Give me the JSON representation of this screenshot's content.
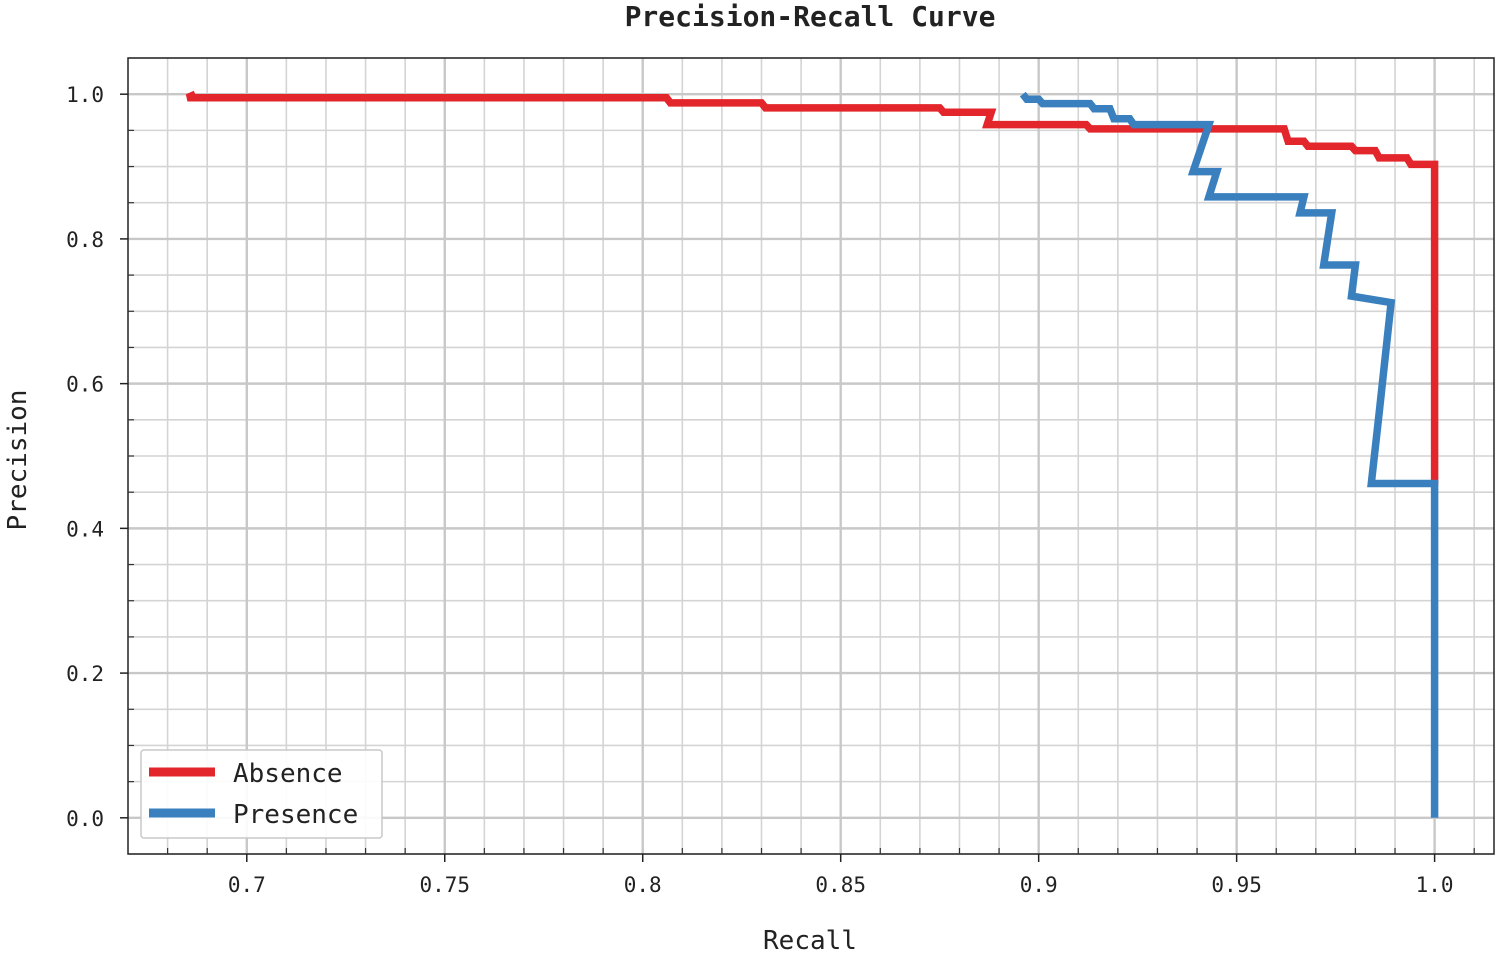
{
  "chart_data": {
    "type": "line",
    "title": "Precision-Recall Curve",
    "xlabel": "Recall",
    "ylabel": "Precision",
    "xlim": [
      0.67,
      1.015
    ],
    "ylim": [
      -0.05,
      1.05
    ],
    "grid": true,
    "legend_position": "bottom-left",
    "x_ticks": [
      {
        "value": 0.7,
        "label": "0.7"
      },
      {
        "value": 0.75,
        "label": "0.75"
      },
      {
        "value": 0.8,
        "label": "0.8"
      },
      {
        "value": 0.85,
        "label": "0.85"
      },
      {
        "value": 0.9,
        "label": "0.9"
      },
      {
        "value": 0.95,
        "label": "0.95"
      },
      {
        "value": 1.0,
        "label": "1.0"
      }
    ],
    "y_ticks": [
      {
        "value": 0.0,
        "label": "0.0"
      },
      {
        "value": 0.2,
        "label": "0.2"
      },
      {
        "value": 0.4,
        "label": "0.4"
      },
      {
        "value": 0.6,
        "label": "0.6"
      },
      {
        "value": 0.8,
        "label": "0.8"
      },
      {
        "value": 1.0,
        "label": "1.0"
      }
    ],
    "series": [
      {
        "name": "Absence",
        "color": "#e3262b",
        "points": [
          [
            0.687,
            1.0
          ],
          [
            0.685,
            0.995
          ],
          [
            0.806,
            0.995
          ],
          [
            0.807,
            0.988
          ],
          [
            0.83,
            0.988
          ],
          [
            0.831,
            0.981
          ],
          [
            0.875,
            0.981
          ],
          [
            0.876,
            0.975
          ],
          [
            0.888,
            0.975
          ],
          [
            0.887,
            0.958
          ],
          [
            0.912,
            0.958
          ],
          [
            0.913,
            0.952
          ],
          [
            0.962,
            0.952
          ],
          [
            0.963,
            0.935
          ],
          [
            0.967,
            0.935
          ],
          [
            0.968,
            0.928
          ],
          [
            0.979,
            0.928
          ],
          [
            0.98,
            0.922
          ],
          [
            0.985,
            0.922
          ],
          [
            0.986,
            0.912
          ],
          [
            0.993,
            0.912
          ],
          [
            0.994,
            0.903
          ],
          [
            1.0,
            0.903
          ],
          [
            1.0,
            0.46
          ]
        ]
      },
      {
        "name": "Presence",
        "color": "#3a80bf",
        "points": [
          [
            0.896,
            1.0
          ],
          [
            0.897,
            0.993
          ],
          [
            0.9,
            0.993
          ],
          [
            0.901,
            0.987
          ],
          [
            0.913,
            0.987
          ],
          [
            0.914,
            0.98
          ],
          [
            0.918,
            0.98
          ],
          [
            0.919,
            0.966
          ],
          [
            0.923,
            0.966
          ],
          [
            0.924,
            0.958
          ],
          [
            0.943,
            0.958
          ],
          [
            0.939,
            0.893
          ],
          [
            0.945,
            0.893
          ],
          [
            0.943,
            0.858
          ],
          [
            0.967,
            0.858
          ],
          [
            0.966,
            0.836
          ],
          [
            0.974,
            0.836
          ],
          [
            0.972,
            0.764
          ],
          [
            0.98,
            0.764
          ],
          [
            0.979,
            0.721
          ],
          [
            0.989,
            0.712
          ],
          [
            0.986,
            0.56
          ],
          [
            0.984,
            0.462
          ],
          [
            1.0,
            0.462
          ],
          [
            1.0,
            0.0
          ]
        ]
      }
    ]
  }
}
